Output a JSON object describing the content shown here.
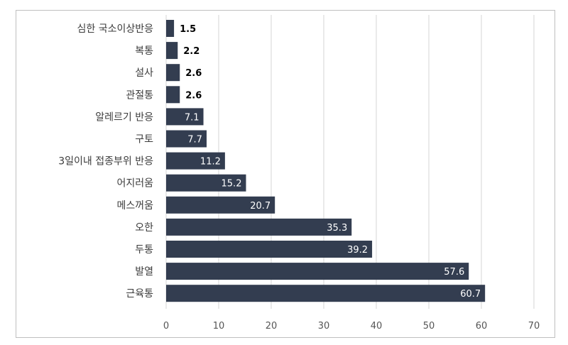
{
  "chart_data": {
    "type": "bar",
    "orientation": "horizontal",
    "categories": [
      "심한 국소이상반응",
      "복통",
      "설사",
      "관절통",
      "알레르기 반응",
      "구토",
      "3일이내 접종부위 반응",
      "어지러움",
      "메스꺼움",
      "오한",
      "두통",
      "발열",
      "근육통"
    ],
    "values": [
      1.5,
      2.2,
      2.6,
      2.6,
      7.1,
      7.7,
      11.2,
      15.2,
      20.7,
      35.3,
      39.2,
      57.6,
      60.7
    ],
    "value_labels": [
      "1.5",
      "2.2",
      "2.6",
      "2.6",
      "7.1",
      "7.7",
      "11.2",
      "15.2",
      "20.7",
      "35.3",
      "39.2",
      "57.6",
      "60.7"
    ],
    "xlim": [
      0,
      70
    ],
    "x_ticks": [
      "0",
      "10",
      "20",
      "30",
      "40",
      "50",
      "60",
      "70"
    ],
    "title": "",
    "xlabel": "",
    "ylabel": "",
    "grid": "vertical",
    "legend": "none",
    "colors": {
      "bar": "#333d50",
      "label_inside": "#ffffff",
      "label_outside": "#000000",
      "grid": "#d4d4d4"
    }
  }
}
